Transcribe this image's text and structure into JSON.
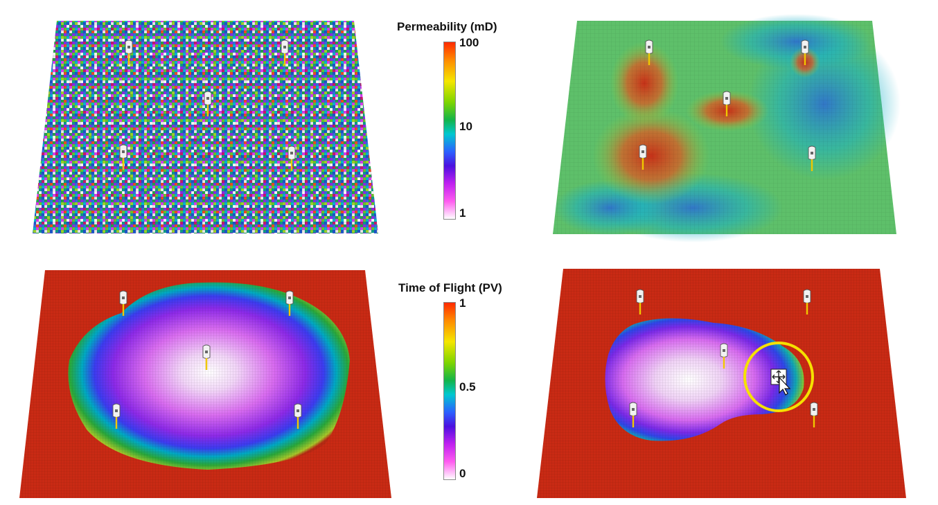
{
  "colorbars": {
    "permeability": {
      "title": "Permeability (mD)",
      "ticks": [
        "100",
        "10",
        "1"
      ],
      "colors": [
        "#ff2a00",
        "#ff8a00",
        "#f5e600",
        "#7dd500",
        "#13b44a",
        "#00c8d0",
        "#2b60ff",
        "#4b10e0",
        "#c020f0",
        "#ff5cf0",
        "#ffffff"
      ]
    },
    "time_of_flight": {
      "title": "Time of Flight (PV)",
      "ticks": [
        "1",
        "0.5",
        "0"
      ],
      "colors": [
        "#ff2a00",
        "#ff8a00",
        "#f5e600",
        "#7dd500",
        "#13b44a",
        "#00c8d0",
        "#2b60ff",
        "#4b10e0",
        "#c020f0",
        "#ff5cf0",
        "#ffffff"
      ]
    }
  },
  "panels": [
    {
      "id": "perm-heterogeneous",
      "type": "random-permeability-grid"
    },
    {
      "id": "perm-correlated",
      "type": "correlated-permeability-grid"
    },
    {
      "id": "tof-heterogeneous",
      "type": "time-of-flight-grid"
    },
    {
      "id": "tof-correlated",
      "type": "time-of-flight-grid"
    }
  ],
  "highlight": {
    "color": "#f5e100",
    "icon": "cursor-move-icon"
  },
  "well_icon": "well-marker-icon"
}
